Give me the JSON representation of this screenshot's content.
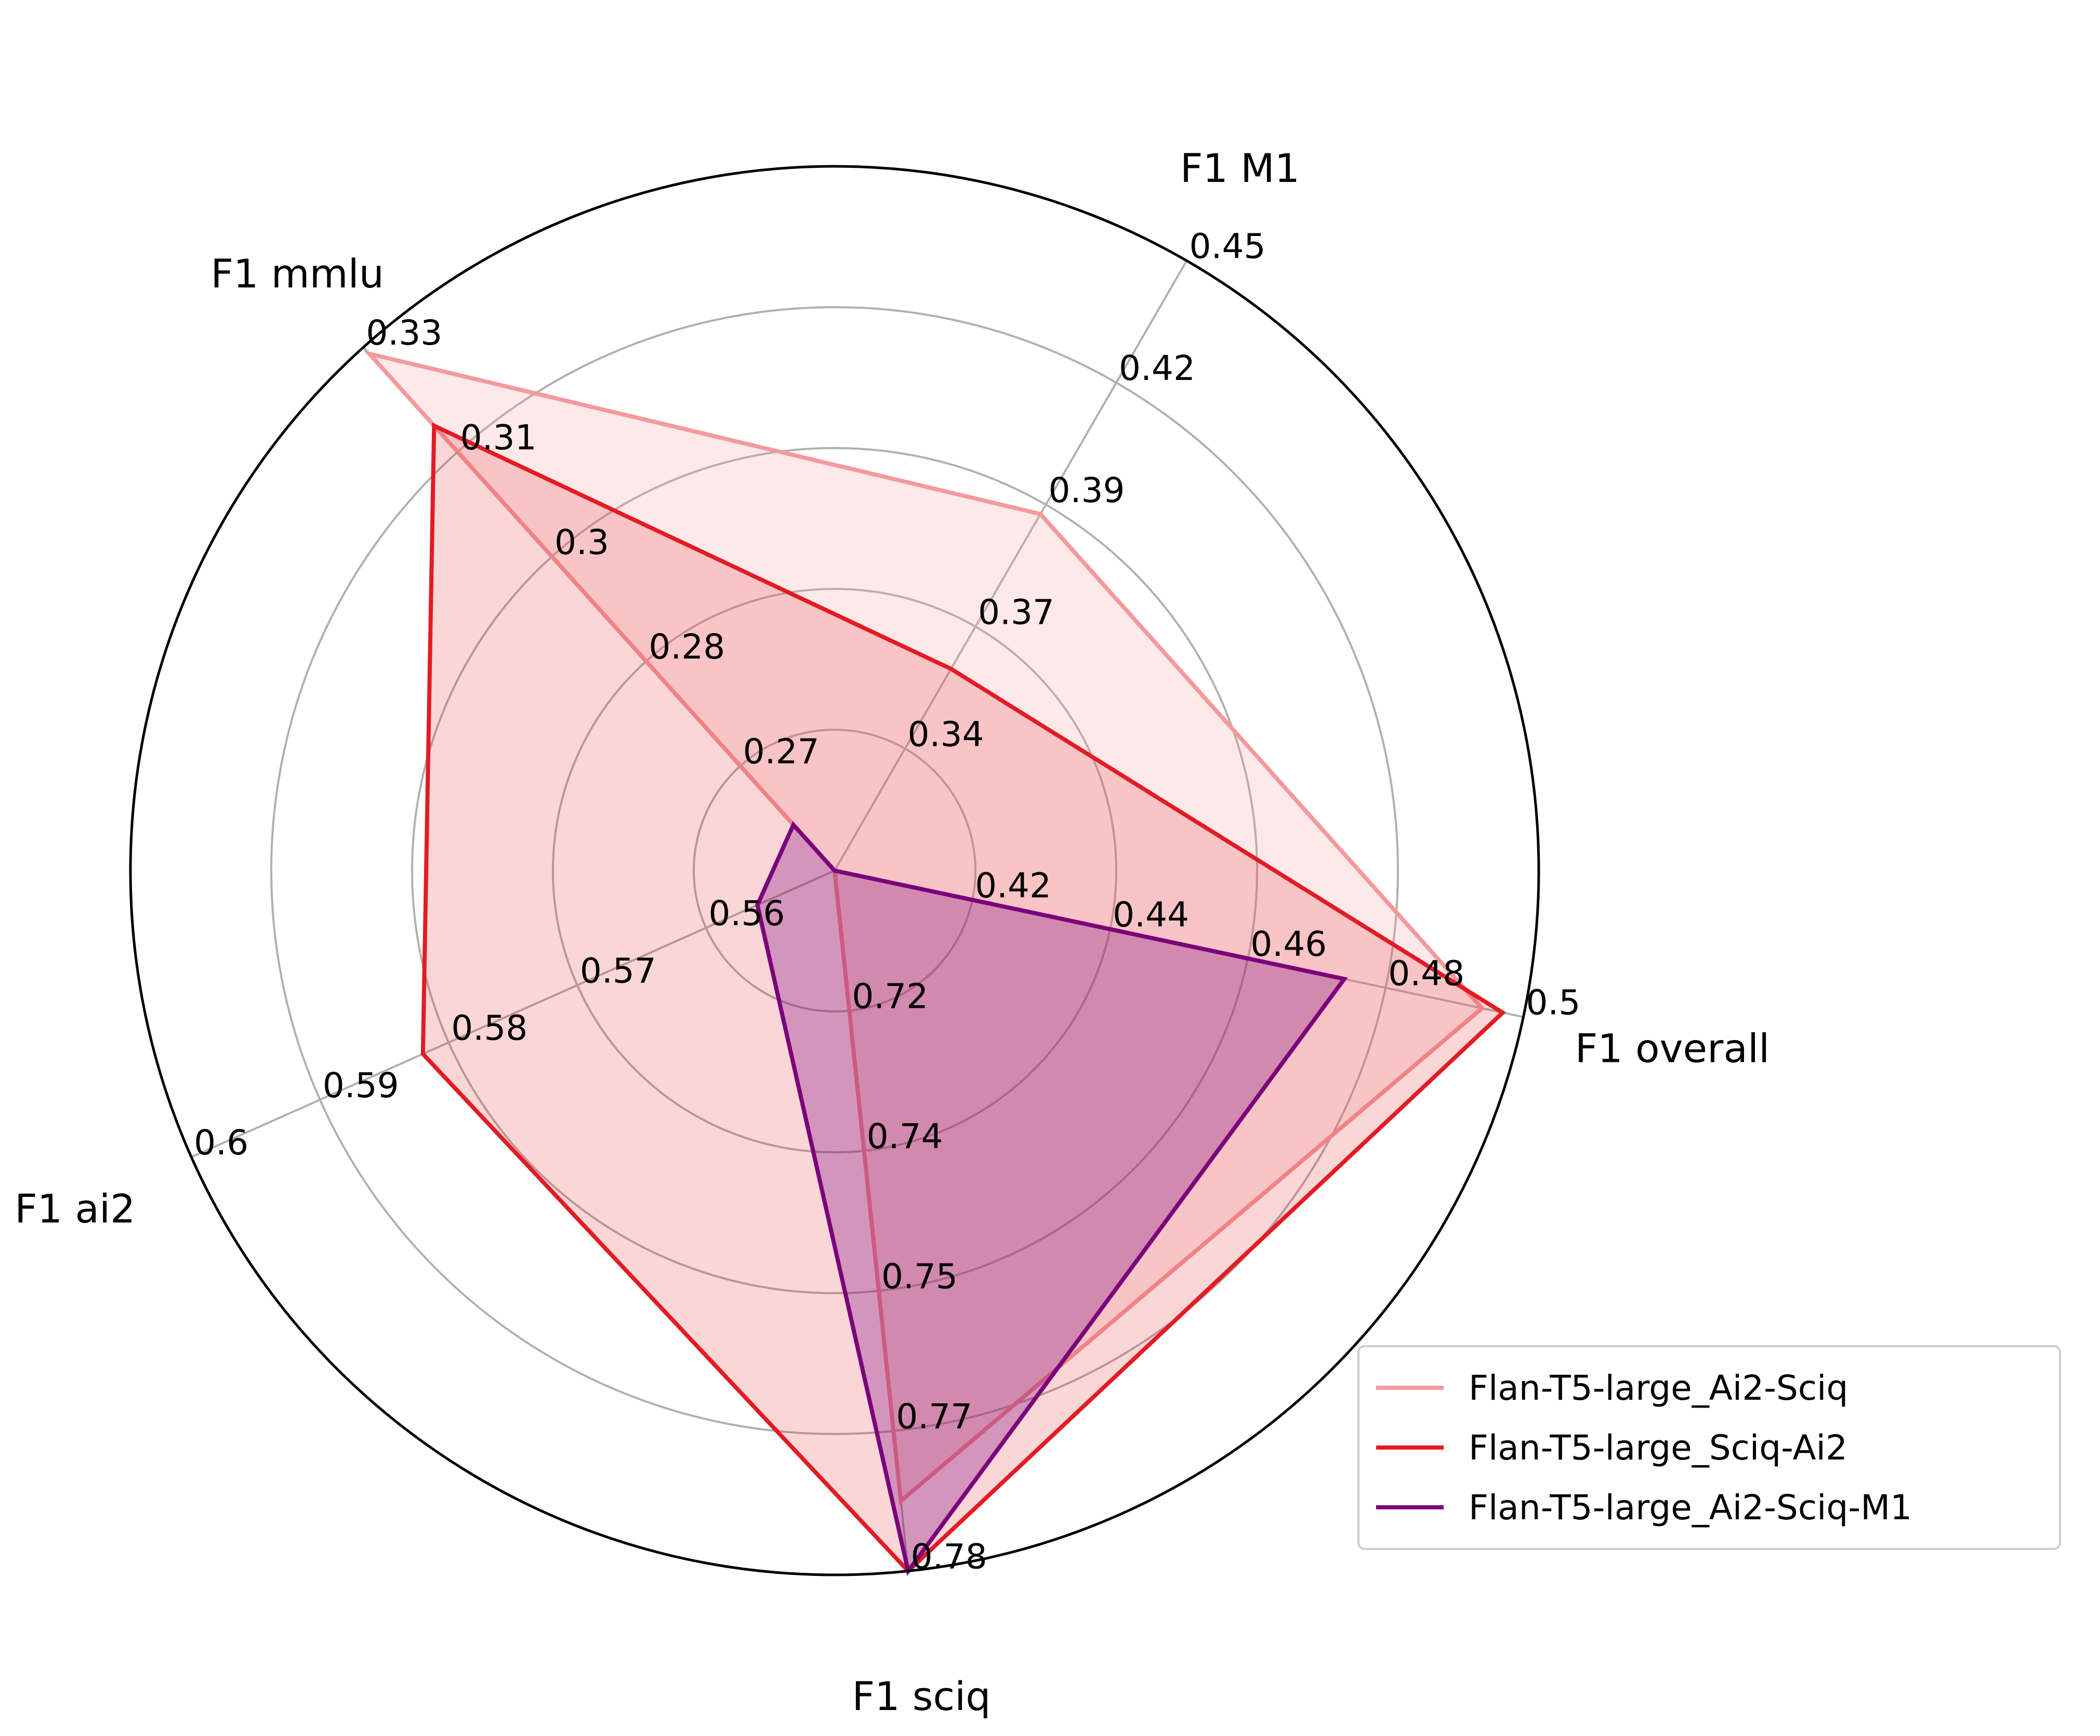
{
  "chart_data": {
    "type": "radar",
    "axes": [
      {
        "label": "F1 overall",
        "range": [
          0.4,
          0.5
        ],
        "ticks": [
          "0.42",
          "0.44",
          "0.46",
          "0.48",
          "0.5"
        ]
      },
      {
        "label": "F1 M1",
        "range": [
          0.32,
          0.45
        ],
        "ticks": [
          "0.34",
          "0.37",
          "0.39",
          "0.42",
          "0.45"
        ]
      },
      {
        "label": "F1 mmlu",
        "range": [
          0.25,
          0.33
        ],
        "ticks": [
          "0.27",
          "0.28",
          "0.3",
          "0.31",
          "0.33"
        ]
      },
      {
        "label": "F1 ai2",
        "range": [
          0.55,
          0.6
        ],
        "ticks": [
          "0.56",
          "0.57",
          "0.58",
          "0.59",
          "0.6"
        ]
      },
      {
        "label": "F1 sciq",
        "range": [
          0.7,
          0.78
        ],
        "ticks": [
          "0.72",
          "0.74",
          "0.75",
          "0.77",
          "0.78"
        ]
      }
    ],
    "series": [
      {
        "name": "Flan-T5-large_Ai2-Sciq",
        "color": "#f4999c",
        "fill_opacity": 0.22,
        "values": [
          0.494,
          0.396,
          0.329,
          0.55,
          0.772
        ]
      },
      {
        "name": "Flan-T5-large_Sciq-Ai2",
        "color": "#e31b23",
        "fill_opacity": 0.18,
        "values": [
          0.497,
          0.363,
          0.318,
          0.582,
          0.78
        ]
      },
      {
        "name": "Flan-T5-large_Ai2-Sciq-M1",
        "color": "#7b007b",
        "fill_opacity": 0.3,
        "values": [
          0.474,
          0.32,
          0.257,
          0.556,
          0.78
        ]
      }
    ],
    "gridlines": true,
    "legend": "bottom-right"
  }
}
